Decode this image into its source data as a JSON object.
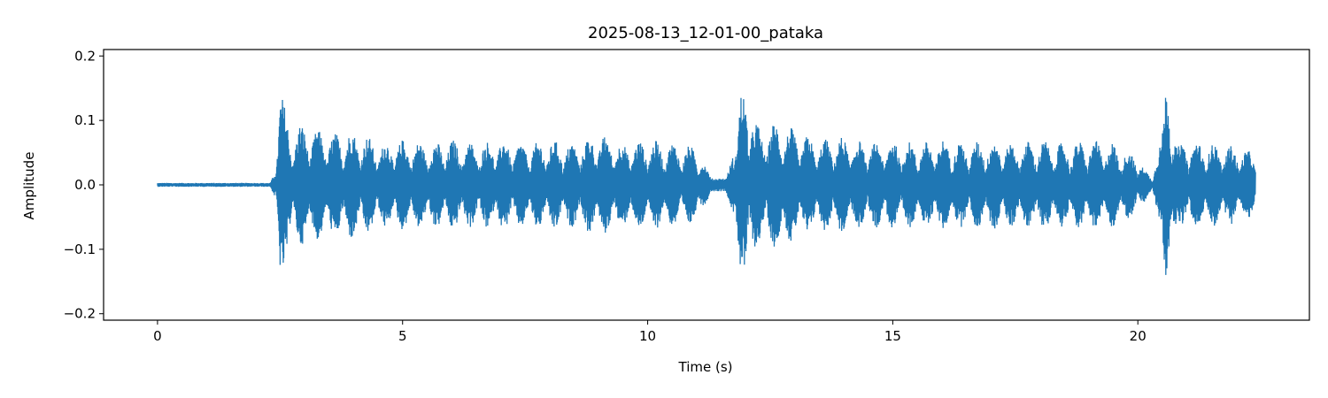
{
  "chart_data": {
    "type": "line",
    "title": "2025-08-13_12-01-00_pataka",
    "xlabel": "Time (s)",
    "ylabel": "Amplitude",
    "xlim": [
      -1.1,
      23.5
    ],
    "ylim": [
      -0.21,
      0.21
    ],
    "x_ticks": [
      0,
      5,
      10,
      15,
      20
    ],
    "x_tick_labels": [
      "0",
      "5",
      "10",
      "15",
      "20"
    ],
    "y_ticks": [
      -0.2,
      -0.1,
      0.0,
      0.1,
      0.2
    ],
    "y_tick_labels": [
      "−0.2",
      "−0.1",
      "0.0",
      "0.1",
      "0.2"
    ],
    "grid": false,
    "series": [
      {
        "color": "#1f77b4",
        "envelope_time": [
          0.0,
          2.3,
          2.4,
          2.5,
          2.6,
          2.75,
          2.9,
          3.1,
          3.3,
          3.6,
          3.9,
          4.2,
          4.5,
          5.0,
          5.5,
          6.0,
          6.5,
          7.0,
          7.5,
          8.0,
          8.5,
          9.0,
          9.5,
          10.0,
          10.5,
          11.0,
          11.3,
          11.6,
          11.8,
          11.9,
          12.0,
          12.1,
          12.3,
          12.5,
          12.7,
          13.0,
          13.5,
          14.0,
          14.5,
          15.0,
          15.5,
          16.0,
          16.5,
          17.0,
          17.5,
          18.0,
          18.5,
          19.0,
          19.5,
          20.0,
          20.3,
          20.5,
          20.6,
          20.7,
          20.8,
          21.0,
          21.5,
          22.0,
          22.4
        ],
        "envelope_amplitude": [
          0.003,
          0.003,
          0.02,
          0.158,
          0.12,
          0.08,
          0.095,
          0.09,
          0.085,
          0.08,
          0.085,
          0.08,
          0.065,
          0.07,
          0.065,
          0.07,
          0.065,
          0.07,
          0.065,
          0.07,
          0.065,
          0.08,
          0.065,
          0.07,
          0.065,
          0.06,
          0.01,
          0.01,
          0.06,
          0.14,
          0.165,
          0.12,
          0.085,
          0.095,
          0.1,
          0.085,
          0.07,
          0.075,
          0.065,
          0.07,
          0.065,
          0.07,
          0.065,
          0.07,
          0.065,
          0.07,
          0.065,
          0.07,
          0.065,
          0.045,
          0.005,
          0.08,
          0.19,
          0.12,
          0.06,
          0.07,
          0.065,
          0.06,
          0.05
        ]
      }
    ]
  }
}
